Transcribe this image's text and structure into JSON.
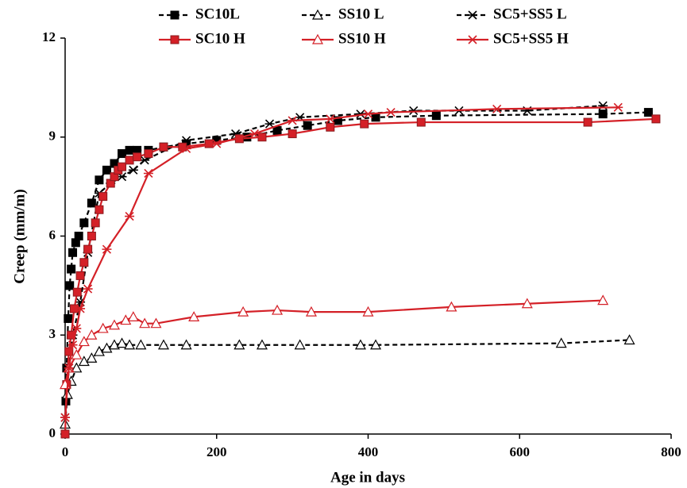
{
  "chart_data": {
    "type": "line",
    "x_label": "Age in days",
    "y_label": "Creep (mm/m)",
    "xlim": [
      0,
      800
    ],
    "xticks": [
      0,
      200,
      400,
      600,
      800
    ],
    "ylim": [
      0,
      12
    ],
    "yticks": [
      0,
      3,
      6,
      9,
      12
    ],
    "series": [
      {
        "name": "SC10L",
        "color": "#000000",
        "dashed": true,
        "marker": "square",
        "filled": true,
        "x": [
          0,
          1,
          2,
          4,
          6,
          8,
          10,
          14,
          18,
          25,
          35,
          45,
          55,
          65,
          75,
          85,
          95,
          110,
          130,
          160,
          200,
          240,
          280,
          320,
          360,
          410,
          490,
          710,
          770
        ],
        "values": [
          0,
          1,
          2,
          3.5,
          4.5,
          5,
          5.5,
          5.8,
          6,
          6.4,
          7,
          7.7,
          8,
          8.2,
          8.5,
          8.6,
          8.6,
          8.6,
          8.7,
          8.8,
          8.9,
          9,
          9.2,
          9.35,
          9.5,
          9.6,
          9.65,
          9.7,
          9.75
        ]
      },
      {
        "name": "SS10 L",
        "color": "#000000",
        "dashed": true,
        "marker": "triangle",
        "filled": false,
        "x": [
          0,
          3,
          8,
          15,
          25,
          35,
          45,
          55,
          65,
          75,
          85,
          100,
          130,
          160,
          230,
          260,
          310,
          390,
          410,
          655,
          745
        ],
        "values": [
          0.3,
          1.2,
          1.6,
          2,
          2.2,
          2.3,
          2.5,
          2.6,
          2.7,
          2.75,
          2.7,
          2.7,
          2.7,
          2.7,
          2.7,
          2.7,
          2.7,
          2.7,
          2.7,
          2.75,
          2.85
        ]
      },
      {
        "name": "SC5+SS5 L",
        "color": "#000000",
        "dashed": true,
        "marker": "star",
        "filled": false,
        "x": [
          0,
          5,
          10,
          20,
          30,
          45,
          60,
          75,
          90,
          105,
          160,
          225,
          270,
          310,
          390,
          460,
          520,
          610,
          710
        ],
        "values": [
          0.5,
          2,
          3,
          4,
          5.5,
          7.3,
          7.6,
          7.8,
          8,
          8.3,
          8.9,
          9.1,
          9.4,
          9.6,
          9.7,
          9.8,
          9.8,
          9.8,
          9.95
        ]
      },
      {
        "name": "SC10 H",
        "color": "#d42027",
        "dashed": false,
        "marker": "square",
        "filled": true,
        "x": [
          0,
          2,
          5,
          8,
          12,
          16,
          20,
          25,
          30,
          35,
          40,
          45,
          50,
          60,
          65,
          70,
          75,
          85,
          95,
          110,
          130,
          155,
          190,
          230,
          260,
          300,
          350,
          395,
          470,
          690,
          780
        ],
        "values": [
          0,
          1.5,
          2.5,
          3,
          3.8,
          4.3,
          4.8,
          5.2,
          5.6,
          6,
          6.4,
          6.8,
          7.2,
          7.6,
          7.8,
          8,
          8.1,
          8.3,
          8.4,
          8.5,
          8.7,
          8.7,
          8.8,
          8.95,
          9,
          9.1,
          9.3,
          9.4,
          9.45,
          9.45,
          9.55
        ]
      },
      {
        "name": "SS10 H",
        "color": "#d42027",
        "dashed": false,
        "marker": "triangle",
        "filled": false,
        "x": [
          0,
          5,
          15,
          25,
          35,
          50,
          65,
          80,
          90,
          105,
          120,
          170,
          235,
          280,
          325,
          400,
          510,
          610,
          710
        ],
        "values": [
          1.5,
          2,
          2.4,
          2.8,
          3,
          3.2,
          3.3,
          3.45,
          3.55,
          3.35,
          3.35,
          3.55,
          3.7,
          3.75,
          3.7,
          3.7,
          3.85,
          3.95,
          4.05
        ]
      },
      {
        "name": "SC5+SS5 H",
        "color": "#d42027",
        "dashed": false,
        "marker": "star",
        "filled": false,
        "x": [
          0,
          5,
          10,
          15,
          20,
          30,
          55,
          85,
          110,
          160,
          200,
          250,
          300,
          350,
          400,
          430,
          570,
          730
        ],
        "values": [
          0.5,
          2,
          2.7,
          3.2,
          3.8,
          4.4,
          5.6,
          6.6,
          7.9,
          8.65,
          8.8,
          9.1,
          9.5,
          9.55,
          9.7,
          9.75,
          9.85,
          9.9
        ]
      }
    ]
  }
}
